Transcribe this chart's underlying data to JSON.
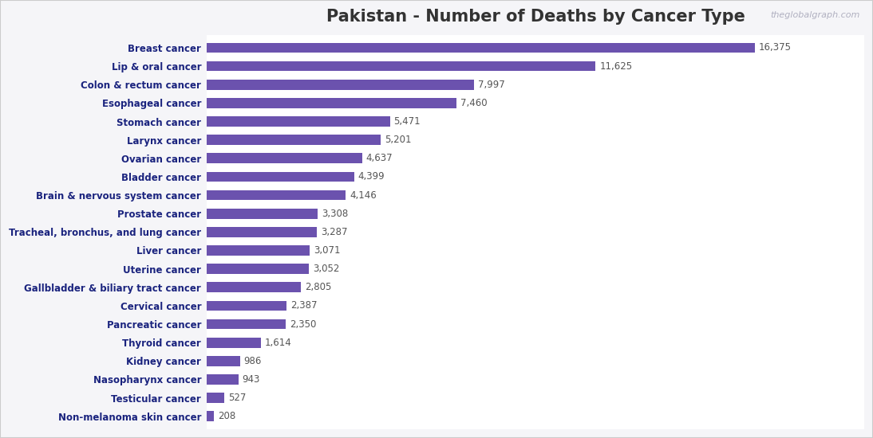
{
  "title": "Pakistan - Number of Deaths by Cancer Type",
  "watermark": "theglobalgraph.com",
  "categories": [
    "Breast cancer",
    "Lip & oral cancer",
    "Colon & rectum cancer",
    "Esophageal cancer",
    "Stomach cancer",
    "Larynx cancer",
    "Ovarian cancer",
    "Bladder cancer",
    "Brain & nervous system cancer",
    "Prostate cancer",
    "Tracheal, bronchus, and lung cancer",
    "Liver cancer",
    "Uterine cancer",
    "Gallbladder & biliary tract cancer",
    "Cervical cancer",
    "Pancreatic cancer",
    "Thyroid cancer",
    "Kidney cancer",
    "Nasopharynx cancer",
    "Testicular cancer",
    "Non-melanoma skin cancer"
  ],
  "values": [
    16375,
    11625,
    7997,
    7460,
    5471,
    5201,
    4637,
    4399,
    4146,
    3308,
    3287,
    3071,
    3052,
    2805,
    2387,
    2350,
    1614,
    986,
    943,
    527,
    208
  ],
  "bar_color": "#6B52AE",
  "label_color_y": "#1a237e",
  "label_color_value": "#555555",
  "title_color": "#333333",
  "watermark_color": "#b0b0c0",
  "title_fontsize": 15,
  "tick_fontsize": 8.5,
  "value_fontsize": 8.5,
  "background_color": "#f5f5f8",
  "plot_bg_color": "#ffffff",
  "border_color": "#cccccc"
}
